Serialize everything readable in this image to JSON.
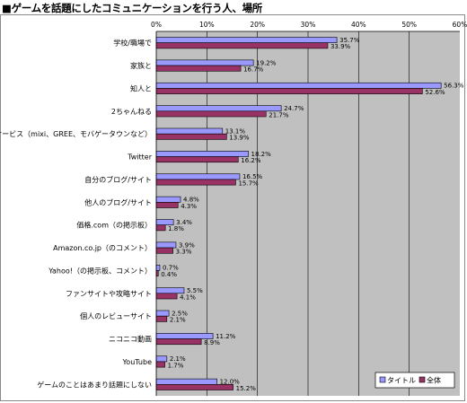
{
  "page": {
    "title": "■ゲームを話題にしたコミュニケーションを行う人、場所"
  },
  "chart_data": {
    "type": "bar",
    "orientation": "horizontal",
    "title": "■ゲームを話題にしたコミュニケーションを行う人、場所",
    "xlim": [
      0,
      60
    ],
    "x_ticks": [
      "0%",
      "10%",
      "20%",
      "30%",
      "40%",
      "50%",
      "60%"
    ],
    "grid": true,
    "legend_position": "bottom-right",
    "categories": [
      "学校/職場で",
      "家族と",
      "知人と",
      "2ちゃんねる",
      "SNSサービス（mixi、GREE、モバゲータウンなど）",
      "Twitter",
      "自分のブログ/サイト",
      "他人のブログ/サイト",
      "価格.com（の掲示板）",
      "Amazon.co.jp（のコメント）",
      "Yahoo!（の掲示板、コメント）",
      "ファンサイトや攻略サイト",
      "個人のレビューサイト",
      "ニコニコ動画",
      "YouTube",
      "ゲームのことはあまり話題にしない"
    ],
    "series": [
      {
        "name": "タイトル",
        "color": "#9999ff",
        "values": [
          35.7,
          19.2,
          56.3,
          24.7,
          13.1,
          18.2,
          16.5,
          4.8,
          3.4,
          3.9,
          0.7,
          5.5,
          2.5,
          11.2,
          2.1,
          12.0
        ],
        "labels": [
          "35.7%",
          "19.2%",
          "56.3%",
          "24.7%",
          "13.1%",
          "18.2%",
          "16.5%",
          "4.8%",
          "3.4%",
          "3.9%",
          "0.7%",
          "5.5%",
          "2.5%",
          "11.2%",
          "2.1%",
          "12.0%"
        ]
      },
      {
        "name": "全体",
        "color": "#993366",
        "values": [
          33.9,
          16.7,
          52.6,
          21.7,
          13.9,
          16.2,
          15.7,
          4.3,
          1.8,
          3.3,
          0.4,
          4.1,
          2.1,
          8.9,
          1.7,
          15.2
        ],
        "labels": [
          "33.9%",
          "16.7%",
          "52.6%",
          "21.7%",
          "13.9%",
          "16.2%",
          "15.7%",
          "4.3%",
          "1.8%",
          "3.3%",
          "0.4%",
          "4.1%",
          "2.1%",
          "8.9%",
          "1.7%",
          "15.2%"
        ]
      }
    ]
  }
}
